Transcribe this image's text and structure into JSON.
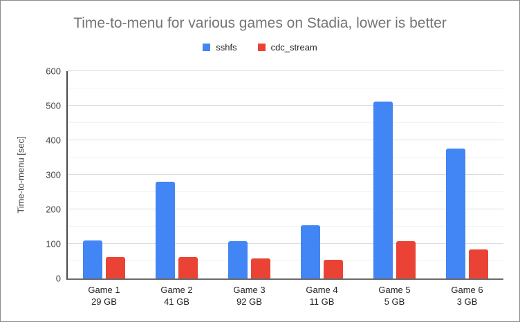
{
  "chart_data": {
    "type": "bar",
    "title": "Time-to-menu for various games on Stadia, lower is better",
    "ylabel": "Time-to-menu [sec]",
    "xlabel": "",
    "ylim": [
      0,
      600
    ],
    "y_major_step": 100,
    "y_minor_step": 50,
    "grid": true,
    "legend_position": "top",
    "categories": [
      {
        "label": "Game 1",
        "sublabel": "29 GB"
      },
      {
        "label": "Game 2",
        "sublabel": "41 GB"
      },
      {
        "label": "Game 3",
        "sublabel": "92 GB"
      },
      {
        "label": "Game 4",
        "sublabel": "11 GB"
      },
      {
        "label": "Game 5",
        "sublabel": "5 GB"
      },
      {
        "label": "Game 6",
        "sublabel": "3 GB"
      }
    ],
    "series": [
      {
        "name": "sshfs",
        "color": "#4285f4",
        "values": [
          110,
          281,
          108,
          155,
          513,
          376
        ]
      },
      {
        "name": "cdc_stream",
        "color": "#ea4335",
        "values": [
          62,
          63,
          59,
          54,
          108,
          85
        ]
      }
    ]
  },
  "colors": {
    "title_text": "#757575",
    "axis_text": "#444444",
    "category_text": "#222222",
    "major_gridline": "#dcdcdc",
    "minor_gridline": "#f2f2f2",
    "axis_line": "#4a4a4a",
    "baseline": "#696969",
    "frame_border": "#8a8a8a",
    "background": "#ffffff"
  }
}
